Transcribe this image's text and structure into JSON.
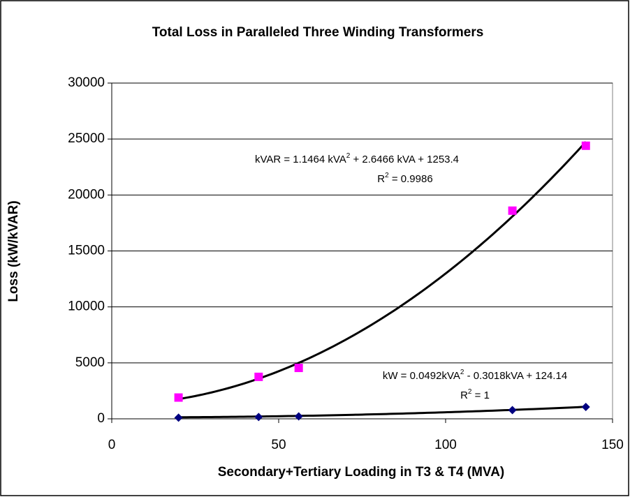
{
  "chart_data": {
    "type": "scatter",
    "title": "Total Loss in Paralleled Three Winding Transformers",
    "x_label": "Secondary+Tertiary Loading in T3 & T4 (MVA)",
    "y_label": "Loss (kW/kVAR)",
    "xlim": [
      0,
      150
    ],
    "xticks": [
      0,
      50,
      100,
      150
    ],
    "ylim": [
      0,
      30000
    ],
    "yticks": [
      0,
      5000,
      10000,
      15000,
      20000,
      25000,
      30000
    ],
    "grid": true,
    "series": [
      {
        "name": "kVAR",
        "color": "#ff00ff",
        "marker": "square",
        "x": [
          20,
          44,
          56,
          120,
          142
        ],
        "values": [
          1900,
          3750,
          4550,
          18600,
          24400
        ],
        "trendline": [
          1.1464,
          2.6466,
          1253.4
        ],
        "annotation": [
          "kVAR = 1.1464 kVA",
          "2",
          " + 2.6466 kVA + 1253.4"
        ],
        "r2": [
          "R",
          "2",
          " = 0.9986"
        ]
      },
      {
        "name": "kW",
        "color": "#000080",
        "marker": "diamond",
        "x": [
          20,
          44,
          56,
          120,
          142
        ],
        "values": [
          100,
          160,
          220,
          780,
          1060
        ],
        "trendline": [
          0.0492,
          -0.3018,
          124.14
        ],
        "annotation": [
          "kW = 0.0492kVA",
          "2",
          " - 0.3018kVA + 124.14"
        ],
        "r2": [
          "R",
          "2",
          " = 1"
        ]
      }
    ]
  }
}
